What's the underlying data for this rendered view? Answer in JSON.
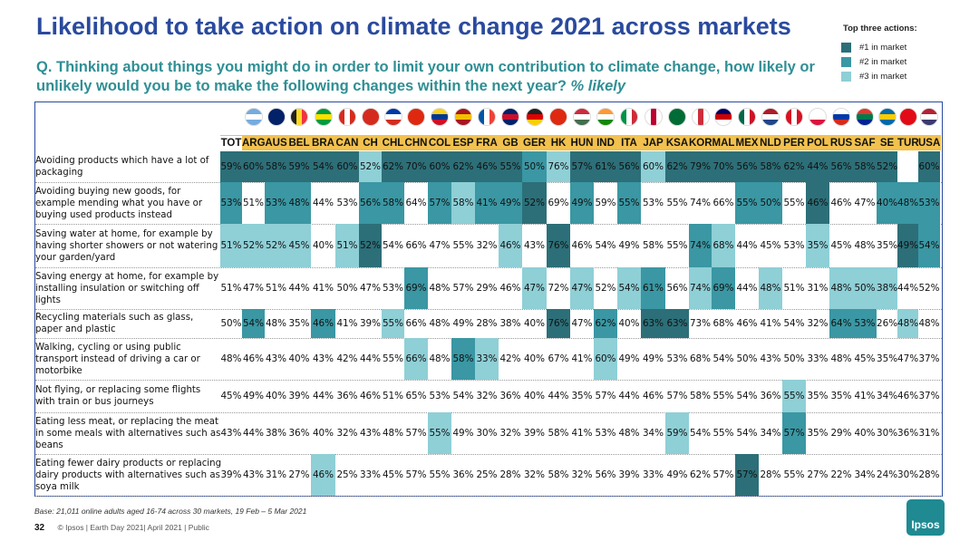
{
  "title": "Likelihood to take action on climate change 2021 across markets",
  "question_text": "Q. Thinking about things you might do in order to limit your own contribution to climate change, how likely or unlikely would you be to make the following changes within the next year?",
  "question_suffix": "% likely",
  "legend": {
    "title": "Top three actions:",
    "items": [
      {
        "label": "#1 in market",
        "color": "#2c6f78"
      },
      {
        "label": "#2  in market",
        "color": "#3a97a3"
      },
      {
        "label": "#3  in market",
        "color": "#8fcfd6"
      }
    ]
  },
  "chart_data": {
    "type": "table",
    "title": "Likelihood to take action on climate change 2021 across markets",
    "columns": [
      "TOT",
      "ARG",
      "AUS",
      "BEL",
      "BRA",
      "CAN",
      "CH",
      "CHL",
      "CHN",
      "COL",
      "ESP",
      "FRA",
      "GB",
      "GER",
      "HK",
      "HUN",
      "IND",
      "ITA",
      "JAP",
      "KSA",
      "KOR",
      "MAL",
      "MEX",
      "NLD",
      "PER",
      "POL",
      "RUS",
      "SAF",
      "SE",
      "TUR",
      "USA"
    ],
    "flags": [
      {
        "name": "argentina-flag",
        "c": [
          "#74acdf",
          "#ffffff",
          "#74acdf"
        ],
        "dir": "h"
      },
      {
        "name": "australia-flag",
        "c": [
          "#012169",
          "#012169",
          "#012169"
        ],
        "dir": "h"
      },
      {
        "name": "belgium-flag",
        "c": [
          "#222222",
          "#fdda24",
          "#ef3340"
        ],
        "dir": "v"
      },
      {
        "name": "brazil-flag",
        "c": [
          "#009c3b",
          "#ffdf00",
          "#009c3b"
        ],
        "dir": "h"
      },
      {
        "name": "canada-flag",
        "c": [
          "#d52b1e",
          "#ffffff",
          "#d52b1e"
        ],
        "dir": "v"
      },
      {
        "name": "switzerland-flag",
        "c": [
          "#d52b1e",
          "#d52b1e",
          "#d52b1e"
        ],
        "dir": "h"
      },
      {
        "name": "chile-flag",
        "c": [
          "#0039a6",
          "#ffffff",
          "#d52b1e"
        ],
        "dir": "h"
      },
      {
        "name": "china-flag",
        "c": [
          "#de2910",
          "#de2910",
          "#de2910"
        ],
        "dir": "h"
      },
      {
        "name": "colombia-flag",
        "c": [
          "#fcd116",
          "#003893",
          "#ce1126"
        ],
        "dir": "h"
      },
      {
        "name": "spain-flag",
        "c": [
          "#aa151b",
          "#f1bf00",
          "#aa151b"
        ],
        "dir": "h"
      },
      {
        "name": "france-flag",
        "c": [
          "#0055a4",
          "#ffffff",
          "#ef4135"
        ],
        "dir": "v"
      },
      {
        "name": "uk-flag",
        "c": [
          "#012169",
          "#c8102e",
          "#012169"
        ],
        "dir": "h"
      },
      {
        "name": "germany-flag",
        "c": [
          "#222222",
          "#dd0000",
          "#ffce00"
        ],
        "dir": "h"
      },
      {
        "name": "hong-kong-flag",
        "c": [
          "#de2910",
          "#de2910",
          "#de2910"
        ],
        "dir": "h"
      },
      {
        "name": "hungary-flag",
        "c": [
          "#cd2a3e",
          "#ffffff",
          "#436f4d"
        ],
        "dir": "h"
      },
      {
        "name": "india-flag",
        "c": [
          "#ff9933",
          "#ffffff",
          "#138808"
        ],
        "dir": "h"
      },
      {
        "name": "italy-flag",
        "c": [
          "#009246",
          "#ffffff",
          "#ce2b37"
        ],
        "dir": "v"
      },
      {
        "name": "japan-flag",
        "c": [
          "#ffffff",
          "#bc002d",
          "#ffffff"
        ],
        "dir": "v"
      },
      {
        "name": "saudi-arabia-flag",
        "c": [
          "#006c35",
          "#006c35",
          "#006c35"
        ],
        "dir": "h"
      },
      {
        "name": "south-korea-flag",
        "c": [
          "#ffffff",
          "#cd2e3a",
          "#ffffff"
        ],
        "dir": "v"
      },
      {
        "name": "malaysia-flag",
        "c": [
          "#010066",
          "#cc0001",
          "#ffffff"
        ],
        "dir": "h"
      },
      {
        "name": "mexico-flag",
        "c": [
          "#006847",
          "#ffffff",
          "#ce1126"
        ],
        "dir": "v"
      },
      {
        "name": "netherlands-flag",
        "c": [
          "#ae1c28",
          "#ffffff",
          "#21468b"
        ],
        "dir": "h"
      },
      {
        "name": "peru-flag",
        "c": [
          "#d91023",
          "#ffffff",
          "#d91023"
        ],
        "dir": "v"
      },
      {
        "name": "poland-flag",
        "c": [
          "#ffffff",
          "#ffffff",
          "#dc143c"
        ],
        "dir": "h"
      },
      {
        "name": "russia-flag",
        "c": [
          "#ffffff",
          "#0039a6",
          "#d52b1e"
        ],
        "dir": "h"
      },
      {
        "name": "south-africa-flag",
        "c": [
          "#de3831",
          "#007a4d",
          "#002395"
        ],
        "dir": "h"
      },
      {
        "name": "sweden-flag",
        "c": [
          "#006aa7",
          "#fecc00",
          "#006aa7"
        ],
        "dir": "h"
      },
      {
        "name": "turkey-flag",
        "c": [
          "#e30a17",
          "#e30a17",
          "#e30a17"
        ],
        "dir": "h"
      },
      {
        "name": "usa-flag",
        "c": [
          "#b22234",
          "#ffffff",
          "#3c3b6e"
        ],
        "dir": "h"
      }
    ],
    "rows": [
      {
        "label": "Avoiding products which have a lot of packaging",
        "values": [
          "59%",
          "60%",
          "58%",
          "59%",
          "54%",
          "60%",
          "52%",
          "62%",
          "70%",
          "60%",
          "62%",
          "46%",
          "55%",
          "50%",
          "76%",
          "57%",
          "61%",
          "56%",
          "60%",
          "62%",
          "79%",
          "70%",
          "56%",
          "58%",
          "62%",
          "44%",
          "56%",
          "58%",
          "52%",
          "",
          "60%"
        ],
        "ranks": [
          1,
          1,
          1,
          1,
          1,
          1,
          3,
          1,
          1,
          1,
          1,
          1,
          1,
          2,
          3,
          1,
          1,
          1,
          3,
          1,
          1,
          1,
          1,
          1,
          1,
          1,
          1,
          1,
          1,
          0,
          1
        ]
      },
      {
        "label": "Avoiding buying new goods, for example mending what you have or buying used products instead",
        "values": [
          "53%",
          "51%",
          "53%",
          "48%",
          "44%",
          "53%",
          "56%",
          "58%",
          "64%",
          "57%",
          "58%",
          "41%",
          "49%",
          "52%",
          "69%",
          "49%",
          "59%",
          "55%",
          "53%",
          "55%",
          "74%",
          "66%",
          "55%",
          "50%",
          "55%",
          "46%",
          "46%",
          "47%",
          "40%",
          "48%",
          "53%"
        ],
        "ranks": [
          2,
          0,
          2,
          2,
          0,
          0,
          2,
          2,
          0,
          2,
          3,
          2,
          2,
          1,
          0,
          2,
          0,
          2,
          0,
          0,
          0,
          0,
          2,
          2,
          0,
          1,
          0,
          0,
          2,
          2,
          2
        ]
      },
      {
        "label": "Saving water at home, for example by having shorter showers or not watering your garden/yard",
        "values": [
          "51%",
          "52%",
          "52%",
          "45%",
          "40%",
          "51%",
          "52%",
          "54%",
          "66%",
          "47%",
          "55%",
          "32%",
          "46%",
          "43%",
          "76%",
          "46%",
          "54%",
          "49%",
          "58%",
          "55%",
          "74%",
          "68%",
          "44%",
          "45%",
          "53%",
          "35%",
          "45%",
          "48%",
          "35%",
          "49%",
          "54%"
        ],
        "ranks": [
          3,
          3,
          3,
          3,
          0,
          3,
          1,
          0,
          0,
          0,
          0,
          0,
          3,
          0,
          1,
          0,
          0,
          0,
          0,
          0,
          2,
          3,
          0,
          0,
          0,
          3,
          0,
          0,
          0,
          1,
          2
        ]
      },
      {
        "label": "Saving energy at home, for example by installing insulation or switching off lights",
        "values": [
          "51%",
          "47%",
          "51%",
          "44%",
          "41%",
          "50%",
          "47%",
          "53%",
          "69%",
          "48%",
          "57%",
          "29%",
          "46%",
          "47%",
          "72%",
          "47%",
          "52%",
          "54%",
          "61%",
          "56%",
          "74%",
          "69%",
          "44%",
          "48%",
          "51%",
          "31%",
          "48%",
          "50%",
          "38%",
          "44%",
          "52%"
        ],
        "ranks": [
          0,
          0,
          0,
          0,
          0,
          0,
          0,
          0,
          2,
          0,
          0,
          0,
          0,
          3,
          0,
          3,
          0,
          3,
          2,
          0,
          3,
          2,
          0,
          3,
          0,
          0,
          3,
          3,
          3,
          0,
          0
        ]
      },
      {
        "label": "Recycling materials such as glass, paper and plastic",
        "values": [
          "50%",
          "54%",
          "48%",
          "35%",
          "46%",
          "41%",
          "39%",
          "55%",
          "66%",
          "48%",
          "49%",
          "28%",
          "38%",
          "40%",
          "76%",
          "47%",
          "62%",
          "40%",
          "63%",
          "63%",
          "73%",
          "68%",
          "46%",
          "41%",
          "54%",
          "32%",
          "64%",
          "53%",
          "26%",
          "48%",
          "48%"
        ],
        "ranks": [
          0,
          2,
          0,
          0,
          2,
          0,
          0,
          3,
          0,
          0,
          0,
          0,
          0,
          0,
          1,
          0,
          2,
          0,
          1,
          1,
          0,
          0,
          0,
          0,
          0,
          0,
          2,
          2,
          0,
          3,
          0
        ]
      },
      {
        "label": "Walking, cycling or using public transport instead of driving a car or motorbike",
        "values": [
          "48%",
          "46%",
          "43%",
          "40%",
          "43%",
          "42%",
          "44%",
          "55%",
          "66%",
          "48%",
          "58%",
          "33%",
          "42%",
          "40%",
          "67%",
          "41%",
          "60%",
          "49%",
          "49%",
          "53%",
          "68%",
          "54%",
          "50%",
          "43%",
          "50%",
          "33%",
          "48%",
          "45%",
          "35%",
          "47%",
          "37%"
        ],
        "ranks": [
          0,
          0,
          0,
          0,
          0,
          0,
          0,
          0,
          3,
          0,
          2,
          3,
          0,
          0,
          0,
          0,
          3,
          0,
          0,
          0,
          0,
          0,
          0,
          0,
          0,
          0,
          0,
          0,
          0,
          0,
          0
        ]
      },
      {
        "label": "Not flying, or replacing some flights with train or bus journeys",
        "values": [
          "45%",
          "49%",
          "40%",
          "39%",
          "44%",
          "36%",
          "46%",
          "51%",
          "65%",
          "53%",
          "54%",
          "32%",
          "36%",
          "40%",
          "44%",
          "35%",
          "57%",
          "44%",
          "46%",
          "57%",
          "58%",
          "55%",
          "54%",
          "36%",
          "55%",
          "35%",
          "35%",
          "41%",
          "34%",
          "46%",
          "37%"
        ],
        "ranks": [
          0,
          0,
          0,
          0,
          0,
          0,
          0,
          0,
          0,
          0,
          0,
          0,
          0,
          0,
          0,
          0,
          0,
          0,
          0,
          0,
          0,
          0,
          0,
          0,
          3,
          0,
          0,
          0,
          0,
          0,
          0
        ]
      },
      {
        "label": "Eating less meat, or replacing the meat in some meals with alternatives such as beans",
        "values": [
          "43%",
          "44%",
          "38%",
          "36%",
          "40%",
          "32%",
          "43%",
          "48%",
          "57%",
          "55%",
          "49%",
          "30%",
          "32%",
          "39%",
          "58%",
          "41%",
          "53%",
          "48%",
          "34%",
          "59%",
          "54%",
          "55%",
          "54%",
          "34%",
          "57%",
          "35%",
          "29%",
          "40%",
          "30%",
          "36%",
          "31%"
        ],
        "ranks": [
          0,
          0,
          0,
          0,
          0,
          0,
          0,
          0,
          0,
          3,
          0,
          0,
          0,
          0,
          0,
          0,
          0,
          0,
          0,
          3,
          0,
          0,
          0,
          0,
          2,
          0,
          0,
          0,
          0,
          0,
          0
        ]
      },
      {
        "label": "Eating fewer dairy products or replacing dairy products with alternatives such as soya milk",
        "values": [
          "39%",
          "43%",
          "31%",
          "27%",
          "46%",
          "25%",
          "33%",
          "45%",
          "57%",
          "55%",
          "36%",
          "25%",
          "28%",
          "32%",
          "58%",
          "32%",
          "56%",
          "39%",
          "33%",
          "49%",
          "62%",
          "57%",
          "57%",
          "28%",
          "55%",
          "27%",
          "22%",
          "34%",
          "24%",
          "30%",
          "28%"
        ],
        "ranks": [
          0,
          0,
          0,
          0,
          3,
          0,
          0,
          0,
          0,
          0,
          0,
          0,
          0,
          0,
          0,
          0,
          0,
          0,
          0,
          0,
          0,
          0,
          1,
          0,
          0,
          0,
          0,
          0,
          0,
          0,
          0
        ]
      }
    ]
  },
  "footer": {
    "base": "Base: 21,011 online adults aged 16-74 across 30 markets,  19 Feb – 5 Mar 2021",
    "page_number": "32",
    "copyright": "© Ipsos | Earth Day 2021| April 2021 | Public",
    "logo_text": "Ipsos"
  }
}
